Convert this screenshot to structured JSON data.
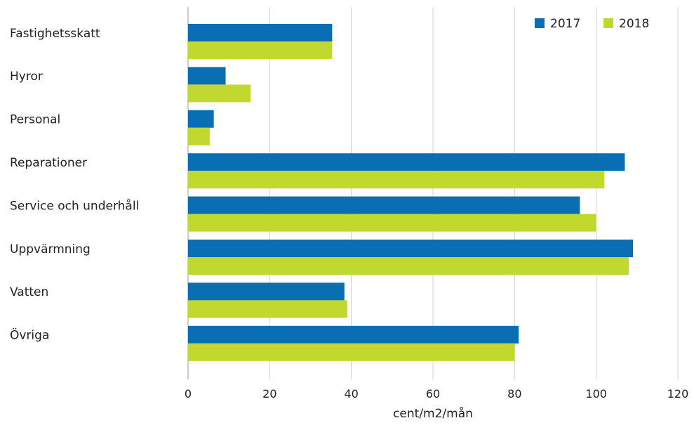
{
  "chart_data": {
    "type": "bar",
    "orientation": "horizontal",
    "categories": [
      "Fastighetsskatt",
      "Hyror",
      "Personal",
      "Reparationer",
      "Service och underhåll",
      "Uppvärmning",
      "Vatten",
      "Övriga"
    ],
    "series": [
      {
        "name": "2017",
        "color": "#0a6eb4",
        "values": [
          35.3,
          9.2,
          6.3,
          107.0,
          96.0,
          109.0,
          38.3,
          81.0
        ]
      },
      {
        "name": "2018",
        "color": "#c1d82f",
        "values": [
          35.3,
          15.3,
          5.3,
          102.0,
          100.0,
          108.0,
          39.0,
          80.0
        ]
      }
    ],
    "xlabel": "cent/m2/mån",
    "xlim": [
      0,
      120
    ],
    "xticks": [
      0,
      20,
      40,
      60,
      80,
      100,
      120
    ],
    "grid": true,
    "legend_position": "top-right"
  }
}
